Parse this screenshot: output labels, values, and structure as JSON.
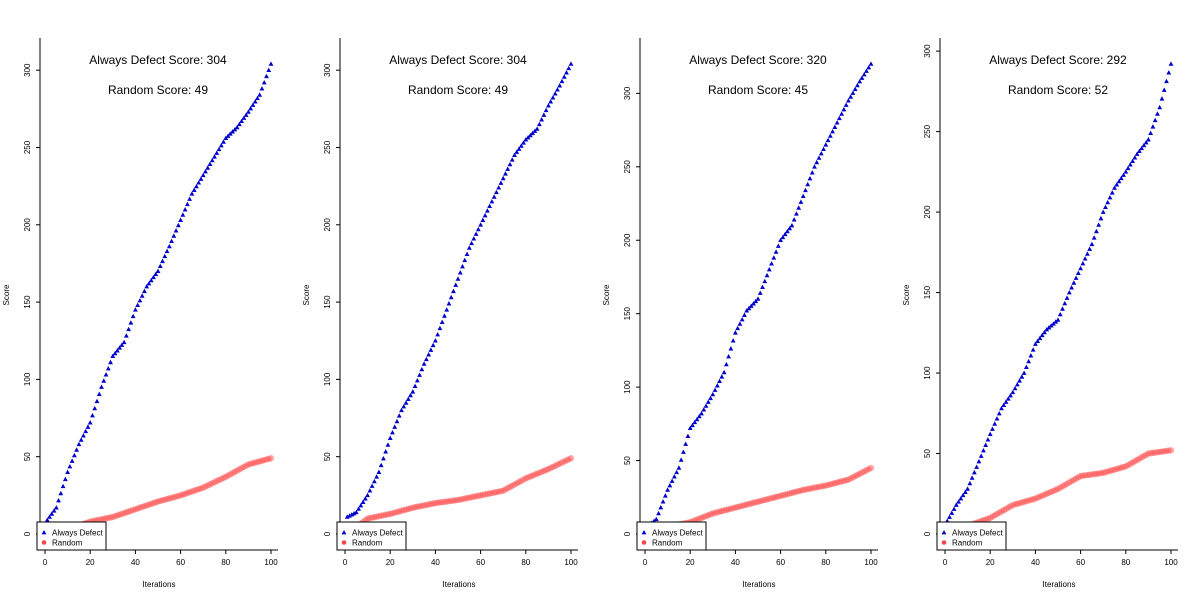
{
  "chart_data": [
    {
      "type": "scatter",
      "xlabel": "Iterations",
      "ylabel": "Score",
      "xlim": [
        0,
        100
      ],
      "ylim": [
        0,
        304
      ],
      "xticks": [
        0,
        20,
        40,
        60,
        80,
        100
      ],
      "yticks": [
        0,
        50,
        100,
        150,
        200,
        250,
        300
      ],
      "annotations": [
        "Always Defect  Score: 304",
        "Random  Score: 49"
      ],
      "legend": {
        "position": "bottom-left",
        "entries": [
          "Always Defect",
          "Random"
        ]
      },
      "series": [
        {
          "name": "Always Defect",
          "color": "#0000cc",
          "marker": "triangle",
          "points": [
            [
              1,
              9
            ],
            [
              5,
              17
            ],
            [
              10,
              40
            ],
            [
              15,
              58
            ],
            [
              20,
              72
            ],
            [
              25,
              95
            ],
            [
              30,
              115
            ],
            [
              35,
              124
            ],
            [
              40,
              145
            ],
            [
              45,
              160
            ],
            [
              50,
              170
            ],
            [
              55,
              186
            ],
            [
              60,
              203
            ],
            [
              65,
              220
            ],
            [
              70,
              232
            ],
            [
              75,
              244
            ],
            [
              80,
              256
            ],
            [
              85,
              263
            ],
            [
              90,
              273
            ],
            [
              95,
              284
            ],
            [
              100,
              304
            ]
          ]
        },
        {
          "name": "Random",
          "color": "#ff4444",
          "marker": "circle",
          "points": [
            [
              1,
              0
            ],
            [
              10,
              3
            ],
            [
              20,
              8
            ],
            [
              30,
              11
            ],
            [
              40,
              16
            ],
            [
              50,
              21
            ],
            [
              60,
              25
            ],
            [
              70,
              30
            ],
            [
              80,
              37
            ],
            [
              90,
              45
            ],
            [
              100,
              49
            ]
          ]
        }
      ]
    },
    {
      "type": "scatter",
      "xlabel": "Iterations",
      "ylabel": "Score",
      "xlim": [
        0,
        100
      ],
      "ylim": [
        0,
        304
      ],
      "xticks": [
        0,
        20,
        40,
        60,
        80,
        100
      ],
      "yticks": [
        0,
        50,
        100,
        150,
        200,
        250,
        300
      ],
      "annotations": [
        "Always Defect  Score: 304",
        "Random  Score: 49"
      ],
      "legend": {
        "position": "bottom-left",
        "entries": [
          "Always Defect",
          "Random"
        ]
      },
      "series": [
        {
          "name": "Always Defect",
          "color": "#0000cc",
          "marker": "triangle",
          "points": [
            [
              1,
              11
            ],
            [
              5,
              14
            ],
            [
              10,
              25
            ],
            [
              15,
              40
            ],
            [
              20,
              62
            ],
            [
              25,
              80
            ],
            [
              30,
              92
            ],
            [
              35,
              110
            ],
            [
              40,
              125
            ],
            [
              45,
              145
            ],
            [
              50,
              165
            ],
            [
              55,
              185
            ],
            [
              60,
              200
            ],
            [
              65,
              215
            ],
            [
              70,
              230
            ],
            [
              75,
              245
            ],
            [
              80,
              255
            ],
            [
              85,
              262
            ],
            [
              90,
              277
            ],
            [
              95,
              290
            ],
            [
              100,
              304
            ]
          ]
        },
        {
          "name": "Random",
          "color": "#ff4444",
          "marker": "circle",
          "points": [
            [
              1,
              0
            ],
            [
              10,
              10
            ],
            [
              20,
              13
            ],
            [
              30,
              17
            ],
            [
              40,
              20
            ],
            [
              50,
              22
            ],
            [
              60,
              25
            ],
            [
              70,
              28
            ],
            [
              80,
              36
            ],
            [
              90,
              42
            ],
            [
              100,
              49
            ]
          ]
        }
      ]
    },
    {
      "type": "scatter",
      "xlabel": "Iterations",
      "ylabel": "Score",
      "xlim": [
        0,
        100
      ],
      "ylim": [
        0,
        320
      ],
      "xticks": [
        0,
        20,
        40,
        60,
        80,
        100
      ],
      "yticks": [
        0,
        50,
        100,
        150,
        200,
        250,
        300
      ],
      "annotations": [
        "Always Defect  Score: 320",
        "Random  Score: 45"
      ],
      "legend": {
        "position": "bottom-left",
        "entries": [
          "Always Defect",
          "Random"
        ]
      },
      "series": [
        {
          "name": "Always Defect",
          "color": "#0000cc",
          "marker": "triangle",
          "points": [
            [
              1,
              5
            ],
            [
              5,
              10
            ],
            [
              10,
              30
            ],
            [
              15,
              45
            ],
            [
              20,
              72
            ],
            [
              25,
              82
            ],
            [
              30,
              95
            ],
            [
              35,
              110
            ],
            [
              40,
              137
            ],
            [
              45,
              152
            ],
            [
              50,
              160
            ],
            [
              55,
              180
            ],
            [
              60,
              200
            ],
            [
              65,
              210
            ],
            [
              70,
              230
            ],
            [
              75,
              250
            ],
            [
              80,
              265
            ],
            [
              85,
              280
            ],
            [
              90,
              295
            ],
            [
              95,
              308
            ],
            [
              100,
              320
            ]
          ]
        },
        {
          "name": "Random",
          "color": "#ff4444",
          "marker": "circle",
          "points": [
            [
              1,
              0
            ],
            [
              10,
              5
            ],
            [
              20,
              8
            ],
            [
              30,
              14
            ],
            [
              40,
              18
            ],
            [
              50,
              22
            ],
            [
              60,
              26
            ],
            [
              70,
              30
            ],
            [
              80,
              33
            ],
            [
              90,
              37
            ],
            [
              100,
              45
            ]
          ]
        }
      ]
    },
    {
      "type": "scatter",
      "xlabel": "Iterations",
      "ylabel": "Score",
      "xlim": [
        0,
        100
      ],
      "ylim": [
        0,
        292
      ],
      "xticks": [
        0,
        20,
        40,
        60,
        80,
        100
      ],
      "yticks": [
        0,
        50,
        100,
        150,
        200,
        250,
        300
      ],
      "annotations": [
        "Always Defect  Score: 292",
        "Random  Score: 52"
      ],
      "legend": {
        "position": "bottom-left",
        "entries": [
          "Always Defect",
          "Random"
        ]
      },
      "series": [
        {
          "name": "Always Defect",
          "color": "#0000cc",
          "marker": "triangle",
          "points": [
            [
              1,
              8
            ],
            [
              5,
              18
            ],
            [
              10,
              28
            ],
            [
              15,
              45
            ],
            [
              20,
              62
            ],
            [
              25,
              78
            ],
            [
              30,
              88
            ],
            [
              35,
              100
            ],
            [
              40,
              118
            ],
            [
              45,
              127
            ],
            [
              50,
              133
            ],
            [
              55,
              150
            ],
            [
              60,
              165
            ],
            [
              65,
              180
            ],
            [
              70,
              200
            ],
            [
              75,
              215
            ],
            [
              80,
              225
            ],
            [
              85,
              236
            ],
            [
              90,
              245
            ],
            [
              95,
              265
            ],
            [
              100,
              292
            ]
          ]
        },
        {
          "name": "Random",
          "color": "#ff4444",
          "marker": "circle",
          "points": [
            [
              1,
              0
            ],
            [
              10,
              5
            ],
            [
              20,
              10
            ],
            [
              30,
              18
            ],
            [
              40,
              22
            ],
            [
              50,
              28
            ],
            [
              60,
              36
            ],
            [
              70,
              38
            ],
            [
              80,
              42
            ],
            [
              90,
              50
            ],
            [
              100,
              52
            ]
          ]
        }
      ]
    }
  ]
}
